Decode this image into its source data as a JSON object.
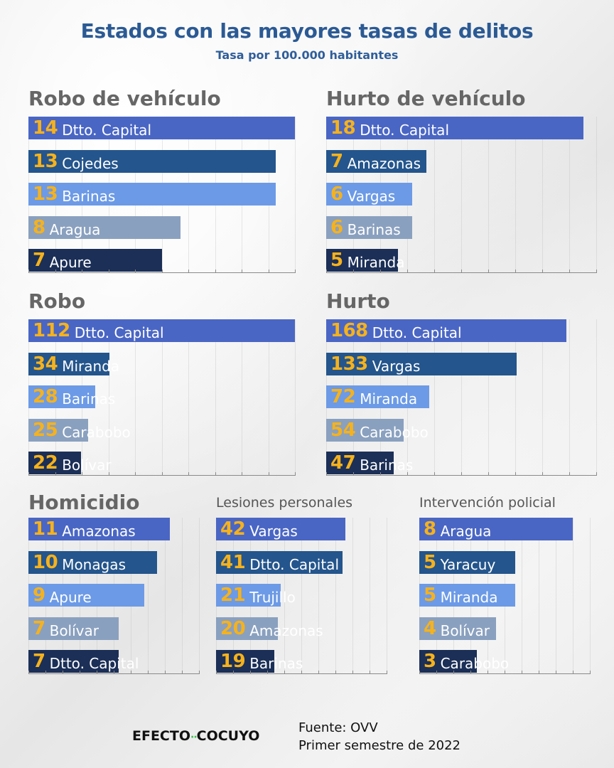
{
  "title": "Estados con las mayores tasas de delitos",
  "subtitle": "Tasa por 100.000 habitantes",
  "colors": {
    "title": "#2b5a94",
    "value": "#f6b21c",
    "rank": [
      "#4a66c4",
      "#24558c",
      "#6c9ae6",
      "#8aa0bf",
      "#1b2f57"
    ]
  },
  "chart_data": [
    {
      "type": "bar",
      "title": "Robo de vehículo",
      "categories": [
        "Dtto. Capital",
        "Cojedes",
        "Barinas",
        "Aragua",
        "Apure"
      ],
      "values": [
        14,
        13,
        13,
        8,
        7
      ],
      "value_labels": [
        "14",
        "13",
        "13",
        "8",
        "7"
      ]
    },
    {
      "type": "bar",
      "title": "Hurto de vehículo",
      "categories": [
        "Dtto. Capital",
        "Amazonas",
        "Vargas",
        "Barinas",
        "Miranda"
      ],
      "values": [
        18,
        7,
        6,
        6,
        5
      ],
      "value_labels": [
        "18",
        "7",
        "6",
        "6",
        "5"
      ]
    },
    {
      "type": "bar",
      "title": "Robo",
      "categories": [
        "Dtto. Capital",
        "Miranda",
        "Barinas",
        "Carabobo",
        "Bolívar"
      ],
      "values": [
        112,
        34,
        28,
        25,
        22
      ],
      "value_labels": [
        "112",
        "34",
        "28",
        "25",
        "22"
      ]
    },
    {
      "type": "bar",
      "title": "Hurto",
      "categories": [
        "Dtto. Capital",
        "Vargas",
        "Miranda",
        "Carabobo",
        "Barinas"
      ],
      "values": [
        168,
        133,
        72,
        54,
        47
      ],
      "value_labels": [
        "168",
        "133",
        "72",
        "54",
        "47"
      ]
    },
    {
      "type": "bar",
      "title": "Homicidio",
      "categories": [
        "Amazonas",
        "Monagas",
        "Apure",
        "Bolívar",
        "Dtto. Capital"
      ],
      "values": [
        11,
        10,
        9,
        7,
        7
      ],
      "value_labels": [
        "11",
        "10",
        "9",
        "7",
        "7"
      ]
    },
    {
      "type": "bar",
      "title": "Lesiones personales",
      "categories": [
        "Vargas",
        "Dtto. Capital",
        "Trujillo",
        "Amazonas",
        "Barinas"
      ],
      "values": [
        42,
        41,
        21,
        20,
        19
      ],
      "value_labels": [
        "42",
        "41",
        "21",
        "20",
        "19"
      ]
    },
    {
      "type": "bar",
      "title": "Intervención policial",
      "categories": [
        "Aragua",
        "Yaracuy",
        "Miranda",
        "Bolívar",
        "Carabobo"
      ],
      "values": [
        8,
        5,
        5,
        4,
        3
      ],
      "value_labels": [
        "8",
        "5",
        "5",
        "4",
        "3"
      ]
    }
  ],
  "footer": {
    "logo_left": "EFECTO",
    "logo_dots": "··",
    "logo_right": "COCUYO",
    "source": "Fuente: OVV",
    "period": "Primer semestre de 2022"
  }
}
